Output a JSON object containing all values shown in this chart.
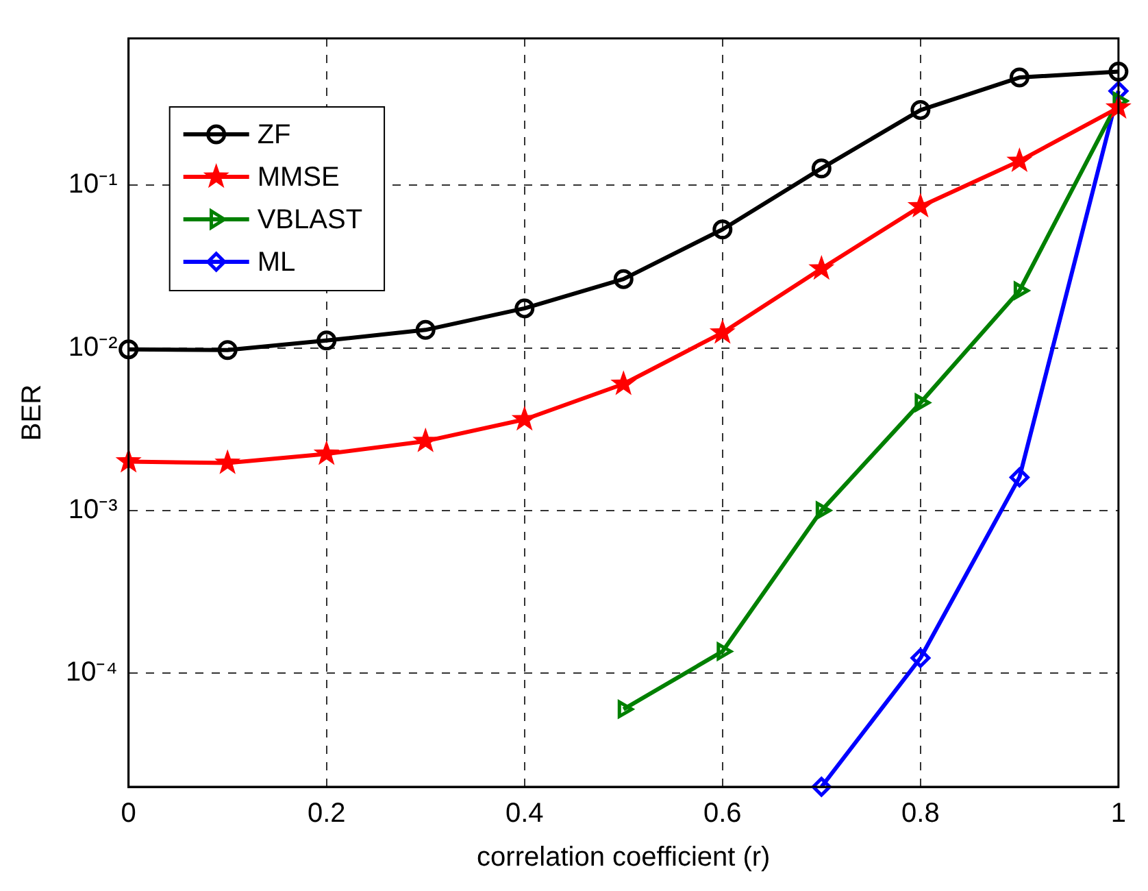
{
  "chart_data": {
    "type": "line",
    "xlabel": "correlation coefficient (r)",
    "ylabel": "BER",
    "x": [
      0,
      0.1,
      0.2,
      0.3,
      0.4,
      0.5,
      0.6,
      0.7,
      0.8,
      0.9,
      1
    ],
    "series": [
      {
        "name": "ZF",
        "color": "#000000",
        "marker": "circle",
        "values": [
          0.0098,
          0.0097,
          0.0111,
          0.0129,
          0.0175,
          0.0265,
          0.0535,
          0.127,
          0.29,
          0.46,
          0.5
        ]
      },
      {
        "name": "MMSE",
        "color": "#ff0000",
        "marker": "star",
        "values": [
          0.002,
          0.00196,
          0.00223,
          0.00267,
          0.00363,
          0.006,
          0.0124,
          0.0307,
          0.0741,
          0.141,
          0.3
        ]
      },
      {
        "name": "VBLAST",
        "color": "#008000",
        "marker": "triangle",
        "values": [
          null,
          null,
          null,
          null,
          null,
          6e-05,
          0.000136,
          0.001,
          0.0046,
          0.0225,
          0.33
        ]
      },
      {
        "name": "ML",
        "color": "#0000ff",
        "marker": "diamond",
        "values": [
          null,
          null,
          null,
          null,
          null,
          null,
          null,
          2e-05,
          0.000124,
          0.0016,
          0.38
        ]
      }
    ],
    "xlim": [
      0,
      1
    ],
    "xticks": [
      0,
      0.2,
      0.4,
      0.6,
      0.8,
      1
    ],
    "ylim": [
      2e-05,
      0.8
    ],
    "yticks": [
      {
        "value": 0.0001,
        "label": "10⁻⁴"
      },
      {
        "value": 0.001,
        "label": "10⁻³"
      },
      {
        "value": 0.01,
        "label": "10⁻²"
      },
      {
        "value": 0.1,
        "label": "10⁻¹"
      }
    ],
    "log": "y",
    "grid": true,
    "legend": "top left",
    "line_style": "solid"
  }
}
